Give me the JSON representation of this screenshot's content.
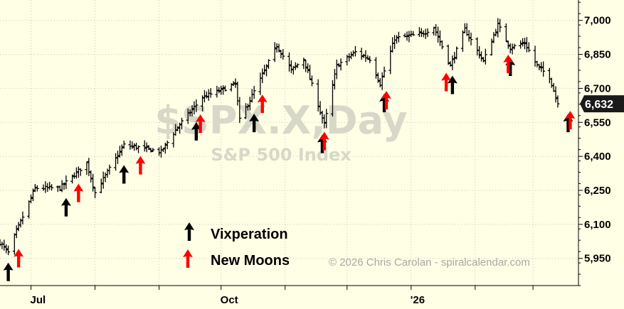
{
  "chart_data": {
    "type": "ohlc",
    "symbol_watermark": "$SPX.X,Day",
    "subtitle_watermark": "S&P 500 Index",
    "copyright": "© 2026 Chris Carolan - spiralcalendar.com",
    "last_value_label": "6,632",
    "last_value": 6632,
    "ylim": [
      5830,
      7090
    ],
    "y_ticks": [
      {
        "value": 5950,
        "label": "5,950"
      },
      {
        "value": 6100,
        "label": "6,100"
      },
      {
        "value": 6250,
        "label": "6,250"
      },
      {
        "value": 6400,
        "label": "6,400"
      },
      {
        "value": 6550,
        "label": "6,550"
      },
      {
        "value": 6700,
        "label": "6,700"
      },
      {
        "value": 6850,
        "label": "6,850"
      },
      {
        "value": 7000,
        "label": "7,000"
      }
    ],
    "x_labels": [
      {
        "date": "2025-07-01",
        "label": "Jul"
      },
      {
        "date": "2025-10-01",
        "label": "Oct"
      },
      {
        "date": "2026-01-01",
        "label": "'26"
      }
    ],
    "x_start_date": "2025-06-16",
    "x_end_date": "2026-03-23",
    "price_path": [
      [
        "2025-06-16",
        6020
      ],
      [
        "2025-06-20",
        5975
      ],
      [
        "2025-06-24",
        6070
      ],
      [
        "2025-07-03",
        6260
      ],
      [
        "2025-07-15",
        6260
      ],
      [
        "2025-07-28",
        6370
      ],
      [
        "2025-08-01",
        6240
      ],
      [
        "2025-08-15",
        6450
      ],
      [
        "2025-08-22",
        6440
      ],
      [
        "2025-09-02",
        6420
      ],
      [
        "2025-09-10",
        6530
      ],
      [
        "2025-09-22",
        6660
      ],
      [
        "2025-10-03",
        6700
      ],
      [
        "2025-10-08",
        6720
      ],
      [
        "2025-10-10",
        6560
      ],
      [
        "2025-10-20",
        6740
      ],
      [
        "2025-10-28",
        6890
      ],
      [
        "2025-11-04",
        6780
      ],
      [
        "2025-11-10",
        6830
      ],
      [
        "2025-11-20",
        6540
      ],
      [
        "2025-11-26",
        6800
      ],
      [
        "2025-12-05",
        6860
      ],
      [
        "2025-12-12",
        6830
      ],
      [
        "2025-12-17",
        6720
      ],
      [
        "2025-12-24",
        6920
      ],
      [
        "2026-01-06",
        6940
      ],
      [
        "2026-01-12",
        6970
      ],
      [
        "2026-01-20",
        6800
      ],
      [
        "2026-01-27",
        6960
      ],
      [
        "2026-02-05",
        6820
      ],
      [
        "2026-02-12",
        6980
      ],
      [
        "2026-02-18",
        6880
      ],
      [
        "2026-02-25",
        6900
      ],
      [
        "2026-03-03",
        6800
      ],
      [
        "2026-03-09",
        6750
      ],
      [
        "2026-03-13",
        6632
      ]
    ],
    "vixperation_arrows": [
      "2025-06-20",
      "2025-07-18",
      "2025-08-15",
      "2025-09-19",
      "2025-10-17",
      "2025-11-19",
      "2025-12-19",
      "2026-01-21",
      "2026-02-18",
      "2026-03-18"
    ],
    "new_moon_arrows": [
      "2025-06-25",
      "2025-07-24",
      "2025-08-23",
      "2025-09-21",
      "2025-10-21",
      "2025-11-20",
      "2025-12-20",
      "2026-01-18",
      "2026-02-17",
      "2026-03-19"
    ],
    "legend": [
      {
        "label": "Vixperation",
        "color": "#000000"
      },
      {
        "label": "New Moons",
        "color": "#ff0000"
      }
    ],
    "colors": {
      "background": "#ffffe6",
      "bars": "#000000",
      "grid": "#c8c8b4",
      "vixperation": "#000000",
      "new_moon": "#ff0000",
      "last_label_bg": "#1a1a1a"
    },
    "grid": true
  }
}
